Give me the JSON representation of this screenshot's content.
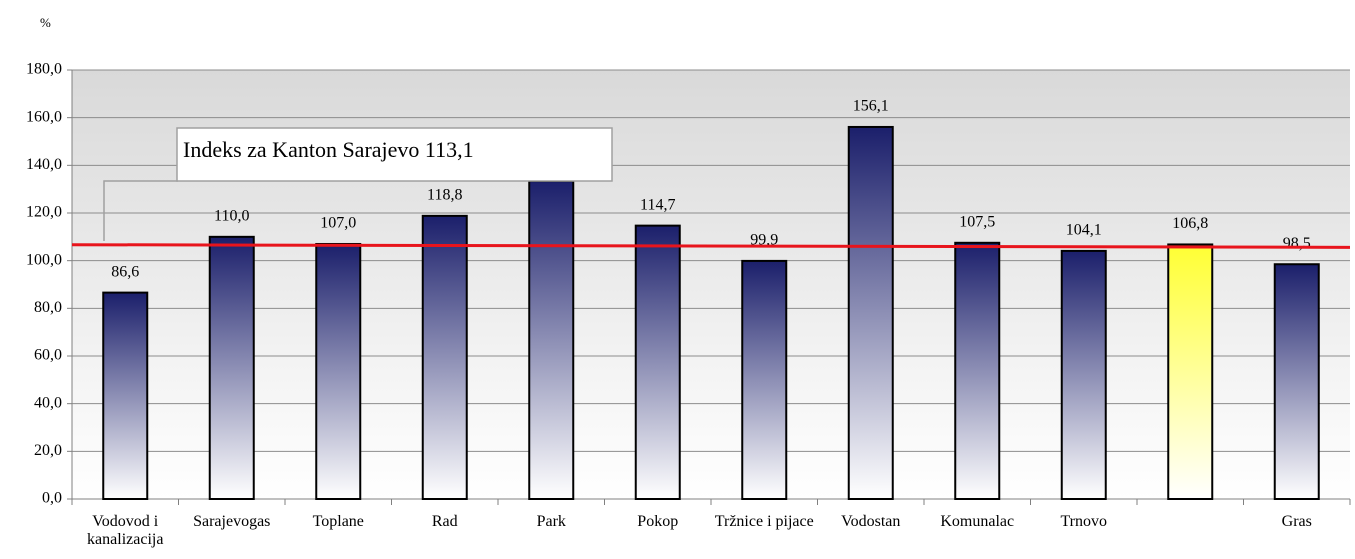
{
  "chart_data": {
    "type": "bar",
    "y_axis_label": "%",
    "categories": [
      "Vodovod i kanalizacija",
      "Sarajevogas",
      "Toplane",
      "Rad",
      "Park",
      "Pokop",
      "Tržnice i pijace",
      "Vodostan",
      "Komunalac",
      "Trnovo",
      null,
      "Gras"
    ],
    "values": [
      86.6,
      110.0,
      107.0,
      118.8,
      133.4,
      114.7,
      99.9,
      156.1,
      107.5,
      104.1,
      106.8,
      98.5
    ],
    "value_labels": [
      "86,6",
      "110,0",
      "107,0",
      "118,8",
      null,
      "114,7",
      "99,9",
      "156,1",
      "107,5",
      "104,1",
      "106,8",
      "98,5"
    ],
    "colors": [
      "#1b1f6b",
      "#1b1f6b",
      "#1b1f6b",
      "#1b1f6b",
      "#1b1f6b",
      "#1b1f6b",
      "#1b1f6b",
      "#1b1f6b",
      "#1b1f6b",
      "#1b1f6b",
      "#ffff33",
      "#1b1f6b"
    ],
    "ylim": [
      0,
      180
    ],
    "yticks": [
      {
        "value": 0,
        "label": "0,0"
      },
      {
        "value": 20,
        "label": "20,0"
      },
      {
        "value": 40,
        "label": "40,0"
      },
      {
        "value": 60,
        "label": "60,0"
      },
      {
        "value": 80,
        "label": "80,0"
      },
      {
        "value": 100,
        "label": "100,0"
      },
      {
        "value": 120,
        "label": "120,0"
      },
      {
        "value": 140,
        "label": "140,0"
      },
      {
        "value": 160,
        "label": "160,0"
      },
      {
        "value": 180,
        "label": "180,0"
      }
    ],
    "grid": true,
    "reference_line": {
      "values": [
        106.7,
        105.6
      ],
      "color": "#e8141c"
    },
    "annotation": "Indeks za Kanton Sarajevo 113,1"
  }
}
